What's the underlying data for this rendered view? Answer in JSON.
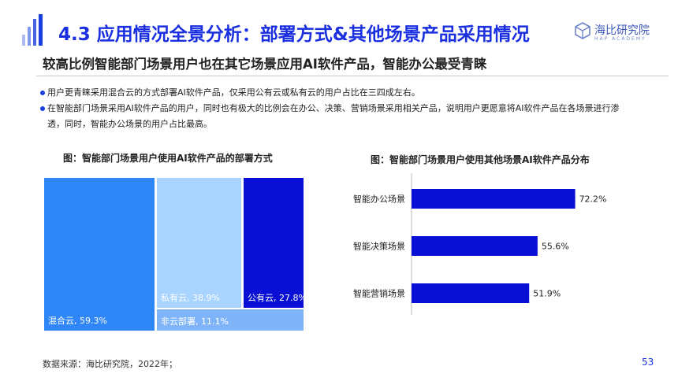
{
  "header": {
    "title": "4.3 应用情况全景分析：部署方式&其他场景产品采用情况",
    "logo_name": "海比研究院",
    "logo_sub": "HAP ACADEMY"
  },
  "subheading": "较高比例智能部门场景用户也在其它场景应用AI软件产品，智能办公最受青睐",
  "bullets": [
    "用户更青睐采用混合云的方式部署AI软件产品，仅采用公有云或私有云的用户占比在三四成左右。",
    "在智能部门场景采用AI软件产品的用户，同时也有极大的比例会在办公、决策、营销场景采用相关产品，说明用户更愿意将AI软件产品在各场景进行渗",
    "透，同时，智能办公场景的用户占比最高。"
  ],
  "left_caption": "图：智能部门场景用户使用AI软件产品的部署方式",
  "right_caption": "图：智能部门场景用户使用其他场景AI软件产品分布",
  "colors": {
    "accent": "#1a2fe0",
    "hybrid": "#2f86f6",
    "private": "#a9d4ff",
    "public": "#0a0fd6",
    "noncloud": "#7fb4f8",
    "bar": "#0a0fd6"
  },
  "chart_data": [
    {
      "type": "treemap",
      "items": [
        {
          "label": "混合云, 59.3%",
          "value": 59.3
        },
        {
          "label": "私有云, 38.9%",
          "value": 38.9
        },
        {
          "label": "公有云, 27.8%",
          "value": 27.8
        },
        {
          "label": "非云部署, 11.1%",
          "value": 11.1
        }
      ]
    },
    {
      "type": "bar",
      "orientation": "horizontal",
      "categories": [
        "智能办公场景",
        "智能决策场景",
        "智能营销场景"
      ],
      "values": [
        72.2,
        55.6,
        51.9
      ],
      "value_labels": [
        "72.2%",
        "55.6%",
        "51.9%"
      ]
    }
  ],
  "footer": {
    "source": "数据来源：海比研究院，2022年；",
    "page": "53"
  }
}
